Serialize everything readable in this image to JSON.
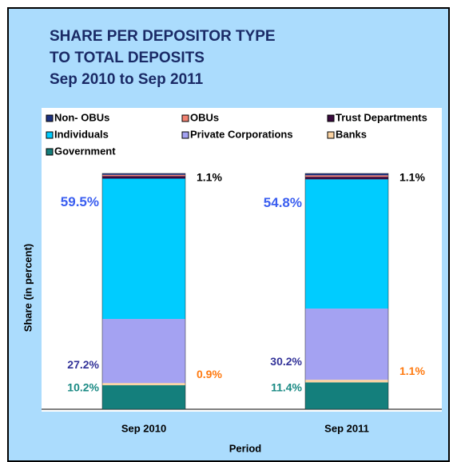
{
  "chart_data": {
    "type": "stacked_bar",
    "title": [
      "SHARE PER DEPOSITOR TYPE",
      "TO TOTAL DEPOSITS",
      "Sep 2010 to Sep 2011"
    ],
    "x_label": "Period",
    "y_label": "Share (in percent)",
    "categories": [
      "Sep 2010",
      "Sep 2011"
    ],
    "series": [
      {
        "name": "Non- OBUs",
        "color": "#1c3180",
        "values": [
          0.6,
          0.8
        ]
      },
      {
        "name": "OBUs",
        "color": "#f28272",
        "values": [
          0.5,
          0.6
        ]
      },
      {
        "name": "Trust Departments",
        "color": "#3a0a3e",
        "values": [
          1.1,
          1.1
        ],
        "value_labels": [
          "1.1%",
          "1.1%"
        ],
        "label_color": "#000000"
      },
      {
        "name": "Individuals",
        "color": "#00ccff",
        "values": [
          59.5,
          54.8
        ],
        "value_labels": [
          "59.5%",
          "54.8%"
        ],
        "label_color": "#3a5ef0"
      },
      {
        "name": "Private Corporations",
        "color": "#a4a2f2",
        "values": [
          27.2,
          30.2
        ],
        "value_labels": [
          "27.2%",
          "30.2%"
        ],
        "label_color": "#333399"
      },
      {
        "name": "Banks",
        "color": "#fbd3a2",
        "values": [
          0.9,
          1.1
        ],
        "value_labels": [
          "0.9%",
          "1.1%"
        ],
        "label_color": "#ff7a10"
      },
      {
        "name": "Government",
        "color": "#147f7c",
        "values": [
          10.2,
          11.4
        ],
        "value_labels": [
          "10.2%",
          "11.4%"
        ],
        "label_color": "#1a8a84"
      }
    ]
  }
}
